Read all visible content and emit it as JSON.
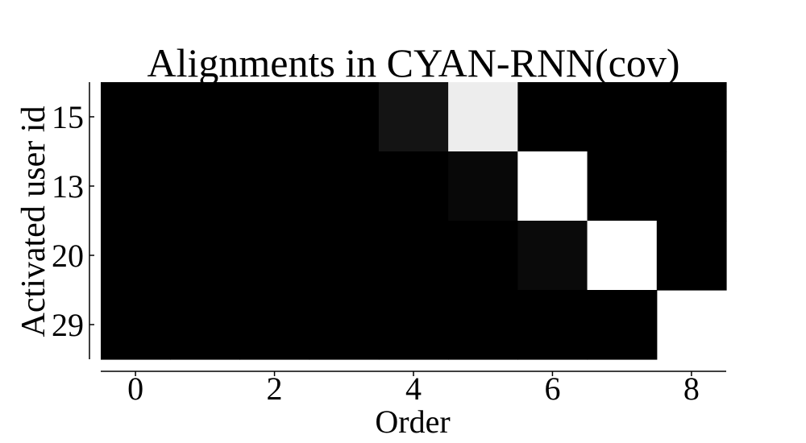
{
  "chart_data": {
    "type": "heatmap",
    "title": "Alignments in CYAN-RNN(cov)",
    "xlabel": "Order",
    "ylabel": "Activated user id",
    "x_ticks": [
      "0",
      "2",
      "4",
      "6",
      "8"
    ],
    "x_tick_values": [
      0,
      2,
      4,
      6,
      8
    ],
    "xlim": [
      -0.5,
      8.5
    ],
    "rows": [
      "15",
      "13",
      "20",
      "29"
    ],
    "columns": [
      0,
      1,
      2,
      3,
      4,
      5,
      6,
      7,
      8
    ],
    "colormap": "grayscale",
    "values": [
      [
        0.0,
        0.0,
        0.0,
        0.0,
        0.08,
        0.93,
        0.0,
        0.0,
        0.0
      ],
      [
        0.0,
        0.0,
        0.0,
        0.0,
        0.0,
        0.03,
        1.0,
        0.0,
        0.0
      ],
      [
        0.0,
        0.0,
        0.0,
        0.0,
        0.0,
        0.0,
        0.04,
        1.0,
        0.0
      ],
      [
        0.0,
        0.0,
        0.0,
        0.0,
        0.0,
        0.0,
        0.0,
        0.0,
        null
      ]
    ],
    "grid": false
  }
}
